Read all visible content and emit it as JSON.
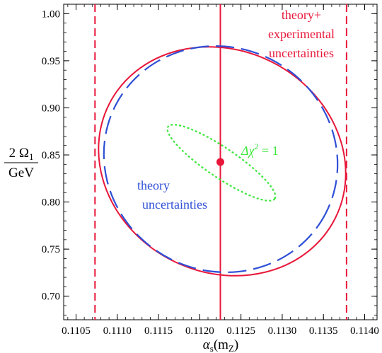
{
  "chart_data": {
    "type": "scatter",
    "title": "",
    "xlabel_main": "α",
    "xlabel_sub1": "s",
    "xlabel_paren": "(m",
    "xlabel_sub2": "Z",
    "xlabel_close": ")",
    "ylabel_numerator": "2 Ω",
    "ylabel_numerator_sub": "1",
    "ylabel_denominator": "GeV",
    "xlim": [
      0.11035,
      0.11415
    ],
    "ylim": [
      0.675,
      1.01
    ],
    "xticks": [
      "0.1105",
      "0.1110",
      "0.1115",
      "0.1120",
      "0.1125",
      "0.1130",
      "0.1135",
      "0.1140"
    ],
    "yticks": [
      "0.70",
      "0.75",
      "0.80",
      "0.85",
      "0.90",
      "0.95",
      "1.00"
    ],
    "best_fit": {
      "x": 0.11225,
      "y": 0.8425
    },
    "vertical_lines": {
      "central": 0.11225,
      "lower_bound": 0.11073,
      "upper_bound": 0.11378
    },
    "ellipses": {
      "theory_experimental": {
        "cx": 0.11222,
        "cy": 0.842,
        "rx_deg_frame": true
      },
      "theory": {
        "cx": 0.11222,
        "cy": 0.845
      },
      "delta_chi2": {
        "cx": 0.11225,
        "cy": 0.8425
      }
    },
    "annotations": {
      "theory_exp_line1": "theory+",
      "theory_exp_line2": "experimental",
      "theory_exp_line3": "uncertainties",
      "theory_line1": "theory",
      "theory_line2": "uncertainties",
      "delta_chi_text": "Δχ",
      "delta_chi_sup": "2",
      "delta_chi_rhs": " = 1"
    },
    "colors": {
      "red": "#e8173a",
      "blue": "#2e4fd6",
      "green": "#3ce63c"
    }
  }
}
